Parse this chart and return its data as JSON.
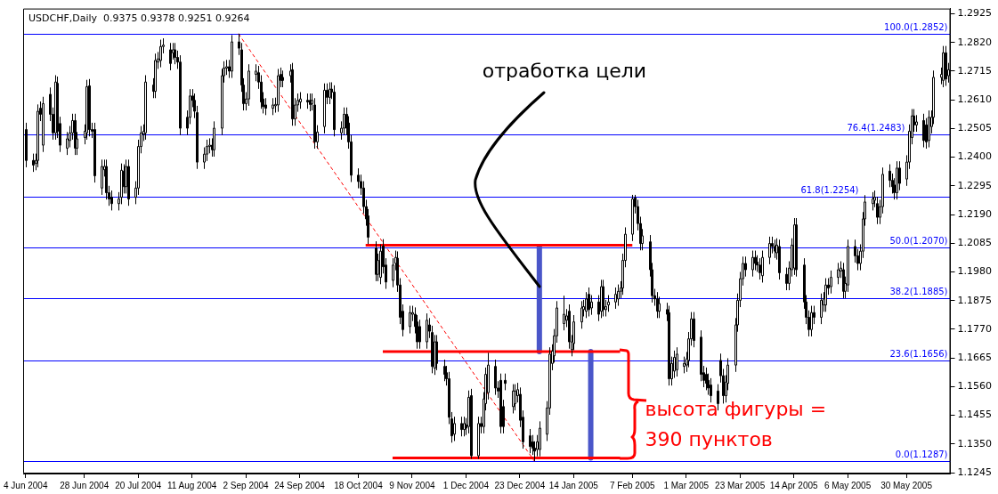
{
  "chart_data": {
    "type": "candlestick",
    "title": "USDCHF,Daily  0.9375 0.9378 0.9251 0.9264",
    "x": [
      "2004-06-04",
      "2004-06-07",
      "2004-06-08",
      "2004-06-09",
      "2004-06-10",
      "2004-06-11",
      "2004-06-14",
      "2004-06-15",
      "2004-06-16",
      "2004-06-17",
      "2004-06-18",
      "2004-06-21",
      "2004-06-22",
      "2004-06-23",
      "2004-06-24",
      "2004-06-25",
      "2004-06-28",
      "2004-06-29",
      "2004-06-30",
      "2004-07-01",
      "2004-07-02",
      "2004-07-05",
      "2004-07-06",
      "2004-07-07",
      "2004-07-08",
      "2004-07-09",
      "2004-07-12",
      "2004-07-13",
      "2004-07-14",
      "2004-07-15",
      "2004-07-16",
      "2004-07-19",
      "2004-07-20",
      "2004-07-21",
      "2004-07-22",
      "2004-07-23",
      "2004-07-26",
      "2004-07-27",
      "2004-07-28",
      "2004-07-29",
      "2004-07-30",
      "2004-08-02",
      "2004-08-03",
      "2004-08-04",
      "2004-08-05",
      "2004-08-06",
      "2004-08-09",
      "2004-08-10",
      "2004-08-11",
      "2004-08-12",
      "2004-08-13",
      "2004-08-16",
      "2004-08-17",
      "2004-08-18",
      "2004-08-19",
      "2004-08-20",
      "2004-08-23",
      "2004-08-24",
      "2004-08-25",
      "2004-08-26",
      "2004-08-27",
      "2004-08-30",
      "2004-08-31",
      "2004-09-01",
      "2004-09-02",
      "2004-09-03",
      "2004-09-06",
      "2004-09-07",
      "2004-09-08",
      "2004-09-09",
      "2004-09-10",
      "2004-09-13",
      "2004-09-14",
      "2004-09-15",
      "2004-09-16",
      "2004-09-17",
      "2004-09-20",
      "2004-09-21",
      "2004-09-22",
      "2004-09-23",
      "2004-09-24",
      "2004-09-27",
      "2004-09-28",
      "2004-09-29",
      "2004-09-30",
      "2004-10-01",
      "2004-10-04",
      "2004-10-05",
      "2004-10-06",
      "2004-10-07",
      "2004-10-08",
      "2004-10-11",
      "2004-10-12",
      "2004-10-13",
      "2004-10-14",
      "2004-10-15",
      "2004-10-18",
      "2004-10-19",
      "2004-10-20",
      "2004-10-21",
      "2004-10-22",
      "2004-10-25",
      "2004-10-26",
      "2004-10-27",
      "2004-10-28",
      "2004-10-29",
      "2004-11-01",
      "2004-11-02",
      "2004-11-03",
      "2004-11-04",
      "2004-11-05",
      "2004-11-08",
      "2004-11-09",
      "2004-11-10",
      "2004-11-11",
      "2004-11-12",
      "2004-11-15",
      "2004-11-16",
      "2004-11-17",
      "2004-11-18",
      "2004-11-19",
      "2004-11-22",
      "2004-11-23",
      "2004-11-24",
      "2004-11-25",
      "2004-11-26",
      "2004-11-29",
      "2004-11-30",
      "2004-12-01",
      "2004-12-02",
      "2004-12-03",
      "2004-12-06",
      "2004-12-07",
      "2004-12-08",
      "2004-12-09",
      "2004-12-10",
      "2004-12-13",
      "2004-12-14",
      "2004-12-15",
      "2004-12-16",
      "2004-12-17",
      "2004-12-20",
      "2004-12-21",
      "2004-12-22",
      "2004-12-23",
      "2004-12-24",
      "2004-12-27",
      "2004-12-28",
      "2004-12-29",
      "2004-12-30",
      "2004-12-31",
      "2005-01-03",
      "2005-01-04",
      "2005-01-05",
      "2005-01-06",
      "2005-01-07",
      "2005-01-10",
      "2005-01-11",
      "2005-01-12",
      "2005-01-13",
      "2005-01-14",
      "2005-01-17",
      "2005-01-18",
      "2005-01-19",
      "2005-01-20",
      "2005-01-21",
      "2005-01-24",
      "2005-01-25",
      "2005-01-26",
      "2005-01-27",
      "2005-01-28",
      "2005-01-31",
      "2005-02-01",
      "2005-02-02",
      "2005-02-03",
      "2005-02-04",
      "2005-02-07",
      "2005-02-08",
      "2005-02-09",
      "2005-02-10",
      "2005-02-11",
      "2005-02-14",
      "2005-02-15",
      "2005-02-16",
      "2005-02-17",
      "2005-02-18",
      "2005-02-21",
      "2005-02-22",
      "2005-02-23",
      "2005-02-24",
      "2005-02-25",
      "2005-02-28",
      "2005-03-01",
      "2005-03-02",
      "2005-03-03",
      "2005-03-04",
      "2005-03-07",
      "2005-03-08",
      "2005-03-09",
      "2005-03-10",
      "2005-03-11",
      "2005-03-14",
      "2005-03-15",
      "2005-03-16",
      "2005-03-17",
      "2005-03-18",
      "2005-03-21",
      "2005-03-22",
      "2005-03-23",
      "2005-03-24",
      "2005-03-25",
      "2005-03-28",
      "2005-03-29",
      "2005-03-30",
      "2005-03-31",
      "2005-04-01",
      "2005-04-04",
      "2005-04-05",
      "2005-04-06",
      "2005-04-07",
      "2005-04-08",
      "2005-04-11",
      "2005-04-12",
      "2005-04-13",
      "2005-04-14",
      "2005-04-15",
      "2005-04-18",
      "2005-04-19",
      "2005-04-20",
      "2005-04-21",
      "2005-04-22",
      "2005-04-25",
      "2005-04-26",
      "2005-04-27",
      "2005-04-28",
      "2005-04-29",
      "2005-05-02",
      "2005-05-03",
      "2005-05-04",
      "2005-05-05",
      "2005-05-06",
      "2005-05-09",
      "2005-05-10",
      "2005-05-11",
      "2005-05-12",
      "2005-05-13",
      "2005-05-16",
      "2005-05-17",
      "2005-05-18",
      "2005-05-19",
      "2005-05-20",
      "2005-05-23",
      "2005-05-24",
      "2005-05-25",
      "2005-05-26",
      "2005-05-27",
      "2005-05-30",
      "2005-05-31",
      "2005-06-01",
      "2005-06-02",
      "2005-06-03",
      "2005-06-06",
      "2005-06-07",
      "2005-06-08",
      "2005-06-09",
      "2005-06-10",
      "2005-06-13",
      "2005-06-14",
      "2005-06-15",
      "2005-06-16"
    ],
    "ohlc": [
      [
        1.2501,
        1.2526,
        1.2363,
        1.2388
      ],
      [
        1.2388,
        1.2413,
        1.2346,
        1.2371
      ],
      [
        1.2377,
        1.2413,
        1.2352,
        1.2388
      ],
      [
        1.2388,
        1.2593,
        1.2363,
        1.2568
      ],
      [
        1.2579,
        1.2604,
        1.2532,
        1.2557
      ],
      [
        1.2444,
        1.2621,
        1.2419,
        1.2596
      ],
      [
        1.263,
        1.2655,
        1.2532,
        1.2557
      ],
      [
        1.2557,
        1.2582,
        1.2464,
        1.2489
      ],
      [
        1.2489,
        1.27,
        1.2464,
        1.2675
      ],
      [
        1.267,
        1.2695,
        1.247,
        1.2495
      ],
      [
        1.2523,
        1.2548,
        1.2419,
        1.2444
      ],
      [
        1.2433,
        1.2492,
        1.2408,
        1.2467
      ],
      [
        1.2461,
        1.2514,
        1.2436,
        1.2489
      ],
      [
        1.2489,
        1.2559,
        1.2464,
        1.2534
      ],
      [
        1.2534,
        1.2559,
        1.2408,
        1.2433
      ],
      [
        1.2433,
        1.2492,
        1.2408,
        1.2467
      ],
      [
        1.2472,
        1.252,
        1.2447,
        1.2495
      ],
      [
        1.2489,
        1.2683,
        1.2464,
        1.2658
      ],
      [
        1.2661,
        1.2686,
        1.2476,
        1.2501
      ],
      [
        1.2501,
        1.2526,
        1.247,
        1.2495
      ],
      [
        1.2501,
        1.2526,
        1.2307,
        1.2332
      ],
      [
        1.2287,
        1.2391,
        1.2262,
        1.2366
      ],
      [
        1.2354,
        1.2391,
        1.2329,
        1.2366
      ],
      [
        1.2366,
        1.2391,
        1.2245,
        1.227
      ],
      [
        1.227,
        1.2295,
        1.2222,
        1.2247
      ],
      [
        1.2253,
        1.2278,
        1.2205,
        1.223
      ],
      [
        1.223,
        1.2272,
        1.2205,
        1.2247
      ],
      [
        1.2253,
        1.2377,
        1.2228,
        1.2352
      ],
      [
        1.2349,
        1.2374,
        1.2267,
        1.2292
      ],
      [
        1.2292,
        1.2391,
        1.2267,
        1.2366
      ],
      [
        1.2366,
        1.2391,
        1.2222,
        1.2247
      ],
      [
        1.2253,
        1.2312,
        1.2228,
        1.2287
      ],
      [
        1.2287,
        1.2464,
        1.2262,
        1.2439
      ],
      [
        1.2439,
        1.2514,
        1.2414,
        1.2489
      ],
      [
        1.2484,
        1.252,
        1.2459,
        1.2495
      ],
      [
        1.2489,
        1.27,
        1.2464,
        1.2675
      ],
      [
        1.2664,
        1.2689,
        1.2616,
        1.2641
      ],
      [
        1.2641,
        1.2779,
        1.2616,
        1.2754
      ],
      [
        1.2748,
        1.2785,
        1.2723,
        1.276
      ],
      [
        1.2754,
        1.283,
        1.2729,
        1.2805
      ],
      [
        1.2805,
        1.2835,
        1.278,
        1.281
      ],
      [
        1.2793,
        1.2818,
        1.2718,
        1.2743
      ],
      [
        1.2782,
        1.2818,
        1.2757,
        1.2793
      ],
      [
        1.2793,
        1.2818,
        1.274,
        1.2765
      ],
      [
        1.2765,
        1.279,
        1.2723,
        1.2748
      ],
      [
        1.2748,
        1.2773,
        1.2481,
        1.2506
      ],
      [
        1.2546,
        1.2571,
        1.2481,
        1.2506
      ],
      [
        1.2546,
        1.2649,
        1.2521,
        1.2624
      ],
      [
        1.2624,
        1.2649,
        1.2583,
        1.2608
      ],
      [
        1.2608,
        1.2633,
        1.2543,
        1.2568
      ],
      [
        1.2563,
        1.2588,
        1.2357,
        1.2382
      ],
      [
        1.2382,
        1.2436,
        1.2357,
        1.2411
      ],
      [
        1.2411,
        1.2464,
        1.2386,
        1.2439
      ],
      [
        1.2439,
        1.2469,
        1.2414,
        1.2444
      ],
      [
        1.2444,
        1.2469,
        1.2402,
        1.2427
      ],
      [
        1.2427,
        1.2531,
        1.2402,
        1.2506
      ],
      [
        1.2506,
        1.2723,
        1.2481,
        1.2698
      ],
      [
        1.2698,
        1.2751,
        1.2673,
        1.2726
      ],
      [
        1.2726,
        1.2756,
        1.2701,
        1.2731
      ],
      [
        1.2731,
        1.2756,
        1.269,
        1.2715
      ],
      [
        1.2715,
        1.2847,
        1.269,
        1.2822
      ],
      [
        1.2822,
        1.2852,
        1.2774,
        1.2799
      ],
      [
        1.2793,
        1.2818,
        1.2639,
        1.2664
      ],
      [
        1.2664,
        1.2689,
        1.2571,
        1.2596
      ],
      [
        1.2596,
        1.2638,
        1.2571,
        1.2613
      ],
      [
        1.2613,
        1.274,
        1.2588,
        1.2715
      ],
      [
        1.2703,
        1.274,
        1.2678,
        1.2715
      ],
      [
        1.2709,
        1.2734,
        1.265,
        1.2675
      ],
      [
        1.2675,
        1.27,
        1.2577,
        1.2602
      ],
      [
        1.2613,
        1.2638,
        1.256,
        1.2585
      ],
      [
        1.2591,
        1.2616,
        1.2554,
        1.2579
      ],
      [
        1.2579,
        1.2616,
        1.2554,
        1.2591
      ],
      [
        1.2588,
        1.2618,
        1.2563,
        1.2593
      ],
      [
        1.2591,
        1.2723,
        1.2566,
        1.2698
      ],
      [
        1.2703,
        1.2728,
        1.2656,
        1.2681
      ],
      [
        1.2692,
        1.2717,
        1.2656,
        1.2681
      ],
      [
        1.2698,
        1.274,
        1.2673,
        1.2715
      ],
      [
        1.272,
        1.2745,
        1.2515,
        1.254
      ],
      [
        1.254,
        1.2616,
        1.2515,
        1.2591
      ],
      [
        1.2591,
        1.2633,
        1.2566,
        1.2608
      ],
      [
        1.2602,
        1.2638,
        1.2577,
        1.2613
      ],
      [
        1.2608,
        1.2633,
        1.2577,
        1.2602
      ],
      [
        1.2608,
        1.2633,
        1.2568,
        1.2593
      ],
      [
        1.2596,
        1.2633,
        1.2571,
        1.2608
      ],
      [
        1.2591,
        1.2616,
        1.2431,
        1.2456
      ],
      [
        1.2456,
        1.2517,
        1.2431,
        1.2492
      ],
      [
        1.2512,
        1.267,
        1.2487,
        1.2645
      ],
      [
        1.2645,
        1.267,
        1.2594,
        1.2619
      ],
      [
        1.2619,
        1.2674,
        1.2594,
        1.2649
      ],
      [
        1.2649,
        1.2674,
        1.2613,
        1.2638
      ],
      [
        1.2638,
        1.2663,
        1.2476,
        1.2501
      ],
      [
        1.2489,
        1.2531,
        1.2464,
        1.2506
      ],
      [
        1.2506,
        1.2582,
        1.2481,
        1.2557
      ],
      [
        1.2557,
        1.2582,
        1.2481,
        1.2506
      ],
      [
        1.2525,
        1.255,
        1.2431,
        1.2456
      ],
      [
        1.2456,
        1.2481,
        1.2309,
        1.2334
      ],
      [
        1.2334,
        1.2359,
        1.2286,
        1.2311
      ],
      [
        1.2311,
        1.2336,
        1.2262,
        1.2287
      ],
      [
        1.2287,
        1.2312,
        1.2194,
        1.2219
      ],
      [
        1.2219,
        1.2244,
        1.2149,
        1.2174
      ],
      [
        1.2185,
        1.221,
        1.2082,
        1.2107
      ],
      [
        1.2067,
        1.2092,
        1.1946,
        1.1971
      ],
      [
        1.1971,
        1.2047,
        1.1946,
        1.2022
      ],
      [
        1.196,
        1.2081,
        1.1935,
        1.2056
      ],
      [
        1.2075,
        1.21,
        1.1974,
        1.1999
      ],
      [
        1.2005,
        1.203,
        1.1918,
        1.1943
      ],
      [
        1.1949,
        1.203,
        1.1924,
        1.2005
      ],
      [
        1.2011,
        1.2058,
        1.1986,
        1.2033
      ],
      [
        1.203,
        1.2055,
        1.1907,
        1.1932
      ],
      [
        1.1932,
        1.1957,
        1.1789,
        1.1814
      ],
      [
        1.1836,
        1.1861,
        1.1744,
        1.1769
      ],
      [
        1.178,
        1.1856,
        1.1755,
        1.1831
      ],
      [
        1.1825,
        1.1856,
        1.18,
        1.1831
      ],
      [
        1.1825,
        1.185,
        1.1755,
        1.178
      ],
      [
        1.1797,
        1.1822,
        1.1699,
        1.1724
      ],
      [
        1.178,
        1.1805,
        1.1699,
        1.1724
      ],
      [
        1.1724,
        1.1828,
        1.1699,
        1.1803
      ],
      [
        1.1786,
        1.1811,
        1.1738,
        1.1763
      ],
      [
        1.1758,
        1.1783,
        1.1609,
        1.1634
      ],
      [
        1.1628,
        1.1749,
        1.1603,
        1.1724
      ],
      [
        1.1724,
        1.1749,
        1.162,
        1.1645
      ],
      [
        1.1634,
        1.1659,
        1.158,
        1.1605
      ],
      [
        1.1611,
        1.1636,
        1.1564,
        1.1589
      ],
      [
        1.1589,
        1.1614,
        1.1423,
        1.1448
      ],
      [
        1.1442,
        1.1467,
        1.1355,
        1.138
      ],
      [
        1.1386,
        1.145,
        1.1361,
        1.1425
      ],
      [
        1.1425,
        1.145,
        1.1378,
        1.1403
      ],
      [
        1.1403,
        1.145,
        1.1378,
        1.1425
      ],
      [
        1.142,
        1.1445,
        1.1383,
        1.1408
      ],
      [
        1.1414,
        1.1546,
        1.1389,
        1.1521
      ],
      [
        1.1527,
        1.1552,
        1.1296,
        1.1307
      ],
      [
        1.1307,
        1.145,
        1.1296,
        1.1425
      ],
      [
        1.1425,
        1.145,
        1.1389,
        1.1414
      ],
      [
        1.1414,
        1.154,
        1.1389,
        1.1515
      ],
      [
        1.1498,
        1.163,
        1.1473,
        1.1605
      ],
      [
        1.1538,
        1.1684,
        1.1513,
        1.1639
      ],
      [
        1.1634,
        1.1659,
        1.153,
        1.1555
      ],
      [
        1.1555,
        1.158,
        1.1519,
        1.1544
      ],
      [
        1.1583,
        1.1608,
        1.1389,
        1.1414
      ],
      [
        1.1487,
        1.1512,
        1.1389,
        1.1414
      ],
      [
        1.1583,
        1.1608,
        1.1547,
        1.1572
      ],
      [
        1.1487,
        1.1569,
        1.1462,
        1.1544
      ],
      [
        1.1498,
        1.1569,
        1.1473,
        1.1544
      ],
      [
        1.1527,
        1.1574,
        1.1502,
        1.1549
      ],
      [
        1.1532,
        1.1557,
        1.1412,
        1.1437
      ],
      [
        1.1448,
        1.1473,
        1.1333,
        1.1358
      ],
      [
        1.138,
        1.1405,
        1.1316,
        1.1341
      ],
      [
        1.1358,
        1.1383,
        1.131,
        1.1335
      ],
      [
        1.1335,
        1.136,
        1.1287,
        1.1324
      ],
      [
        1.133,
        1.1383,
        1.1305,
        1.1358
      ],
      [
        1.133,
        1.1433,
        1.1305,
        1.1408
      ],
      [
        1.1386,
        1.1507,
        1.1361,
        1.1482
      ],
      [
        1.1482,
        1.1704,
        1.1457,
        1.1679
      ],
      [
        1.1645,
        1.1715,
        1.162,
        1.169
      ],
      [
        1.1673,
        1.1771,
        1.1648,
        1.1746
      ],
      [
        1.1746,
        1.1873,
        1.1721,
        1.1848
      ],
      [
        1.1791,
        1.1893,
        1.1766,
        1.1825
      ],
      [
        1.1803,
        1.1844,
        1.1778,
        1.1819
      ],
      [
        1.1836,
        1.1861,
        1.1699,
        1.1724
      ],
      [
        1.1696,
        1.1749,
        1.1671,
        1.1724
      ],
      [
        1.1718,
        1.1822,
        1.1693,
        1.1797
      ],
      [
        1.1797,
        1.1873,
        1.1772,
        1.1848
      ],
      [
        1.1842,
        1.1878,
        1.1817,
        1.1853
      ],
      [
        1.1836,
        1.1906,
        1.1811,
        1.1881
      ],
      [
        1.1898,
        1.1923,
        1.1817,
        1.1842
      ],
      [
        1.1848,
        1.1895,
        1.1823,
        1.187
      ],
      [
        1.187,
        1.1895,
        1.18,
        1.1825
      ],
      [
        1.1836,
        1.1951,
        1.1811,
        1.1926
      ],
      [
        1.1926,
        1.1951,
        1.1817,
        1.1842
      ],
      [
        1.1842,
        1.1878,
        1.1817,
        1.1853
      ],
      [
        1.1859,
        1.1895,
        1.1834,
        1.187
      ],
      [
        1.187,
        1.1923,
        1.1845,
        1.1898
      ],
      [
        1.1881,
        1.1934,
        1.1856,
        1.1909
      ],
      [
        1.1909,
        1.1946,
        1.1884,
        1.1921
      ],
      [
        1.1921,
        1.2047,
        1.1896,
        1.2022
      ],
      [
        1.2022,
        1.2143,
        1.1997,
        1.2118
      ],
      [
        1.2118,
        1.2262,
        1.2093,
        1.2247
      ],
      [
        1.2251,
        1.2262,
        1.2194,
        1.2219
      ],
      [
        1.2219,
        1.2244,
        1.2132,
        1.2157
      ],
      [
        1.2157,
        1.2182,
        1.2059,
        1.2084
      ],
      [
        1.2084,
        1.2137,
        1.2059,
        1.2112
      ],
      [
        1.209,
        1.2115,
        1.1963,
        1.1988
      ],
      [
        1.1988,
        1.2013,
        1.1868,
        1.1893
      ],
      [
        1.1893,
        1.1918,
        1.1856,
        1.1881
      ],
      [
        1.1881,
        1.1906,
        1.1811,
        1.1836
      ],
      [
        1.1836,
        1.1889,
        1.1811,
        1.1864
      ],
      [
        1.1842,
        1.1867,
        1.18,
        1.1825
      ],
      [
        1.1831,
        1.1856,
        1.1564,
        1.1589
      ],
      [
        1.1589,
        1.167,
        1.1564,
        1.1645
      ],
      [
        1.1617,
        1.1692,
        1.1592,
        1.1667
      ],
      [
        1.1622,
        1.1704,
        1.1597,
        1.1679
      ],
      [
        1.1634,
        1.167,
        1.1609,
        1.1645
      ],
      [
        1.1639,
        1.1687,
        1.1614,
        1.1662
      ],
      [
        1.1656,
        1.176,
        1.1631,
        1.1735
      ],
      [
        1.1735,
        1.1833,
        1.171,
        1.1808
      ],
      [
        1.1808,
        1.1833,
        1.1704,
        1.1729
      ],
      [
        1.1741,
        1.1766,
        1.158,
        1.1605
      ],
      [
        1.1611,
        1.1636,
        1.1558,
        1.1583
      ],
      [
        1.1605,
        1.163,
        1.1547,
        1.1572
      ],
      [
        1.1583,
        1.1608,
        1.153,
        1.1555
      ],
      [
        1.1566,
        1.1591,
        1.1502,
        1.1527
      ],
      [
        1.1544,
        1.1569,
        1.1473,
        1.1498
      ],
      [
        1.1656,
        1.1681,
        1.1575,
        1.16
      ],
      [
        1.16,
        1.1625,
        1.1498,
        1.1527
      ],
      [
        1.1527,
        1.1602,
        1.1502,
        1.1577
      ],
      [
        1.1572,
        1.1664,
        1.1547,
        1.1639
      ],
      [
        1.1639,
        1.1811,
        1.1614,
        1.1786
      ],
      [
        1.1786,
        1.1901,
        1.1761,
        1.1876
      ],
      [
        1.1876,
        1.198,
        1.1851,
        1.1955
      ],
      [
        1.1955,
        1.2036,
        1.193,
        1.2011
      ],
      [
        1.2011,
        1.2036,
        1.1963,
        1.1988
      ],
      [
        1.1988,
        1.2058,
        1.1963,
        1.2033
      ],
      [
        1.2033,
        1.2058,
        1.1986,
        1.2011
      ],
      [
        1.2016,
        1.2041,
        1.198,
        1.2005
      ],
      [
        1.2005,
        1.203,
        1.1952,
        1.1977
      ],
      [
        1.1966,
        1.2058,
        1.1941,
        1.2033
      ],
      [
        1.2033,
        1.2109,
        1.2008,
        1.2084
      ],
      [
        1.2084,
        1.2109,
        1.2048,
        1.2073
      ],
      [
        1.2073,
        1.2098,
        1.2031,
        1.2056
      ],
      [
        1.205,
        1.2103,
        1.2025,
        1.2078
      ],
      [
        1.2073,
        1.2098,
        1.1952,
        1.1977
      ],
      [
        1.1971,
        1.1996,
        1.1913,
        1.1938
      ],
      [
        1.1938,
        1.2019,
        1.1913,
        1.1994
      ],
      [
        1.1988,
        1.2103,
        1.1963,
        1.2078
      ],
      [
        1.1994,
        1.2177,
        1.1969,
        1.2152
      ],
      [
        1.2152,
        1.2177,
        1.1963,
        1.1988
      ],
      [
        1.2005,
        1.203,
        1.1845,
        1.187
      ],
      [
        1.187,
        1.1895,
        1.1789,
        1.1814
      ],
      [
        1.1814,
        1.1839,
        1.1744,
        1.1769
      ],
      [
        1.1769,
        1.1856,
        1.1744,
        1.1831
      ],
      [
        1.1831,
        1.1856,
        1.1789,
        1.1814
      ],
      [
        1.1814,
        1.1901,
        1.1789,
        1.1876
      ],
      [
        1.1859,
        1.1906,
        1.1834,
        1.1881
      ],
      [
        1.1859,
        1.1957,
        1.1834,
        1.1932
      ],
      [
        1.1932,
        1.1957,
        1.1896,
        1.1921
      ],
      [
        1.1926,
        1.1985,
        1.1901,
        1.196
      ],
      [
        1.196,
        1.2013,
        1.1935,
        1.1988
      ],
      [
        1.1983,
        1.2019,
        1.1958,
        1.1994
      ],
      [
        1.1988,
        1.2013,
        1.1884,
        1.1909
      ],
      [
        1.1909,
        1.1963,
        1.1884,
        1.1938
      ],
      [
        1.1932,
        1.2098,
        1.1907,
        1.2073
      ],
      [
        1.2073,
        1.2098,
        1.2014,
        1.2039
      ],
      [
        1.2039,
        1.2064,
        1.1986,
        1.2011
      ],
      [
        1.2011,
        1.2081,
        1.1986,
        1.2056
      ],
      [
        1.2056,
        1.2199,
        1.2031,
        1.2174
      ],
      [
        1.2174,
        1.2261,
        1.2149,
        1.2236
      ],
      [
        1.223,
        1.2272,
        1.2205,
        1.2247
      ],
      [
        1.2242,
        1.2278,
        1.2217,
        1.2253
      ],
      [
        1.223,
        1.2255,
        1.2155,
        1.218
      ],
      [
        1.218,
        1.2244,
        1.2155,
        1.2219
      ],
      [
        1.2219,
        1.2362,
        1.2194,
        1.2337
      ],
      [
        1.2349,
        1.2374,
        1.229,
        1.2315
      ],
      [
        1.2315,
        1.234,
        1.2267,
        1.2292
      ],
      [
        1.2298,
        1.2323,
        1.2245,
        1.227
      ],
      [
        1.227,
        1.2385,
        1.2245,
        1.236
      ],
      [
        1.236,
        1.2385,
        1.2279,
        1.2304
      ],
      [
        1.232,
        1.2407,
        1.2295,
        1.2382
      ],
      [
        1.2382,
        1.252,
        1.2357,
        1.2495
      ],
      [
        1.2472,
        1.2576,
        1.2447,
        1.2551
      ],
      [
        1.2551,
        1.2576,
        1.2493,
        1.2518
      ],
      [
        1.2518,
        1.2554,
        1.2493,
        1.2529
      ],
      [
        1.2534,
        1.2559,
        1.2436,
        1.2461
      ],
      [
        1.2518,
        1.2543,
        1.2431,
        1.2456
      ],
      [
        1.2461,
        1.2571,
        1.2436,
        1.2546
      ],
      [
        1.2512,
        1.2571,
        1.2487,
        1.2546
      ],
      [
        1.2546,
        1.2717,
        1.2521,
        1.2692
      ],
      [
        1.2692,
        1.2728,
        1.2667,
        1.2703
      ],
      [
        1.2681,
        1.2807,
        1.2656,
        1.2782
      ],
      [
        1.2782,
        1.2807,
        1.2661,
        1.2686
      ],
      [
        1.2698,
        1.2745,
        1.2673,
        1.272
      ]
    ],
    "series": [
      {
        "type": "line",
        "x": [
          "2004-08-30",
          "2004-12-29"
        ],
        "values": [
          1.2852,
          1.1287
        ],
        "color": "#ff0000",
        "line_style": "dashed"
      },
      {
        "type": "line",
        "x": [
          "2004-10-21",
          "2005-02-07"
        ],
        "values": [
          1.2078,
          1.2078
        ],
        "color": "#ff0000",
        "line_style": "solid"
      },
      {
        "type": "line",
        "x": [
          "2004-10-28",
          "2005-02-02"
        ],
        "values": [
          1.1688,
          1.1688
        ],
        "color": "#ff0000",
        "line_style": "solid"
      },
      {
        "type": "line",
        "x": [
          "2004-11-01",
          "2005-02-02"
        ],
        "values": [
          1.1299,
          1.1299
        ],
        "color": "#ff0000",
        "line_style": "solid"
      },
      {
        "type": "line",
        "x": [
          "2004-12-31",
          "2004-12-31"
        ],
        "values": [
          1.2073,
          1.1688
        ],
        "color": "#4a56c9",
        "line_style": "solid"
      },
      {
        "type": "line",
        "x": [
          "2005-01-21",
          "2005-01-21"
        ],
        "values": [
          1.1688,
          1.1299
        ],
        "color": "#4a56c9",
        "line_style": "solid"
      }
    ],
    "ref_lines": [
      {
        "axis": "y",
        "value": 1.2852,
        "label": "100.0(1.2852)",
        "color": "#0000ff"
      },
      {
        "axis": "y",
        "value": 1.2483,
        "label": "76.4(1.2483)",
        "color": "#0000ff"
      },
      {
        "axis": "y",
        "value": 1.2254,
        "label": "61.8(1.2254)",
        "color": "#0000ff"
      },
      {
        "axis": "y",
        "value": 1.207,
        "label": "50.0(1.2070)",
        "color": "#0000ff"
      },
      {
        "axis": "y",
        "value": 1.1885,
        "label": "38.2(1.1885)",
        "color": "#0000ff"
      },
      {
        "axis": "y",
        "value": 1.1656,
        "label": "23.6(1.1656)",
        "color": "#0000ff"
      },
      {
        "axis": "y",
        "value": 1.1287,
        "label": "0.0(1.1287)",
        "color": "#0000ff"
      }
    ],
    "annotations": [
      {
        "text": "отработка цели",
        "x": "2004-12-31",
        "y": 1.1926
      },
      {
        "text": "высота фигуры = 390 пунктов",
        "x": "2005-02-02",
        "y": 1.1688
      }
    ],
    "xlim": [
      "2004-06-03",
      "2005-06-17"
    ],
    "ylim": [
      1.1242,
      1.2944
    ],
    "yticks": [
      1.2925,
      {
        "value": 1.282,
        "label": "1.2820"
      },
      1.2715,
      {
        "value": 1.261,
        "label": "1.2610"
      },
      1.2505,
      {
        "value": 1.24,
        "label": "1.2400"
      },
      1.2295,
      {
        "value": 1.219,
        "label": "1.2190"
      },
      1.2085,
      {
        "value": 1.198,
        "label": "1.1980"
      },
      1.1875,
      {
        "value": 1.177,
        "label": "1.1770"
      },
      1.1665,
      {
        "value": 1.156,
        "label": "1.1560"
      },
      1.1455,
      {
        "value": 1.135,
        "label": "1.1350"
      },
      1.1245
    ],
    "xticks": [
      {
        "value": "2004-06-04",
        "label": "4 Jun 2004"
      },
      {
        "value": "2004-06-28",
        "label": "28 Jun 2004"
      },
      {
        "value": "2004-07-20",
        "label": "20 Jul 2004"
      },
      {
        "value": "2004-08-11",
        "label": "11 Aug 2004"
      },
      {
        "value": "2004-09-02",
        "label": "2 Sep 2004"
      },
      {
        "value": "2004-09-24",
        "label": "24 Sep 2004"
      },
      {
        "value": "2004-10-18",
        "label": "18 Oct 2004"
      },
      {
        "value": "2004-11-09",
        "label": "9 Nov 2004"
      },
      {
        "value": "2004-12-01",
        "label": "1 Dec 2004"
      },
      {
        "value": "2004-12-23",
        "label": "23 Dec 2004"
      },
      {
        "value": "2005-01-14",
        "label": "14 Jan 2005"
      },
      {
        "value": "2005-02-07",
        "label": "7 Feb 2005"
      },
      {
        "value": "2005-03-01",
        "label": "1 Mar 2005"
      },
      {
        "value": "2005-03-23",
        "label": "23 Mar 2005"
      },
      {
        "value": "2005-04-14",
        "label": "14 Apr 2005"
      },
      {
        "value": "2005-05-06",
        "label": "6 May 2005"
      },
      {
        "value": "2005-05-30",
        "label": "30 May 2005"
      }
    ]
  }
}
